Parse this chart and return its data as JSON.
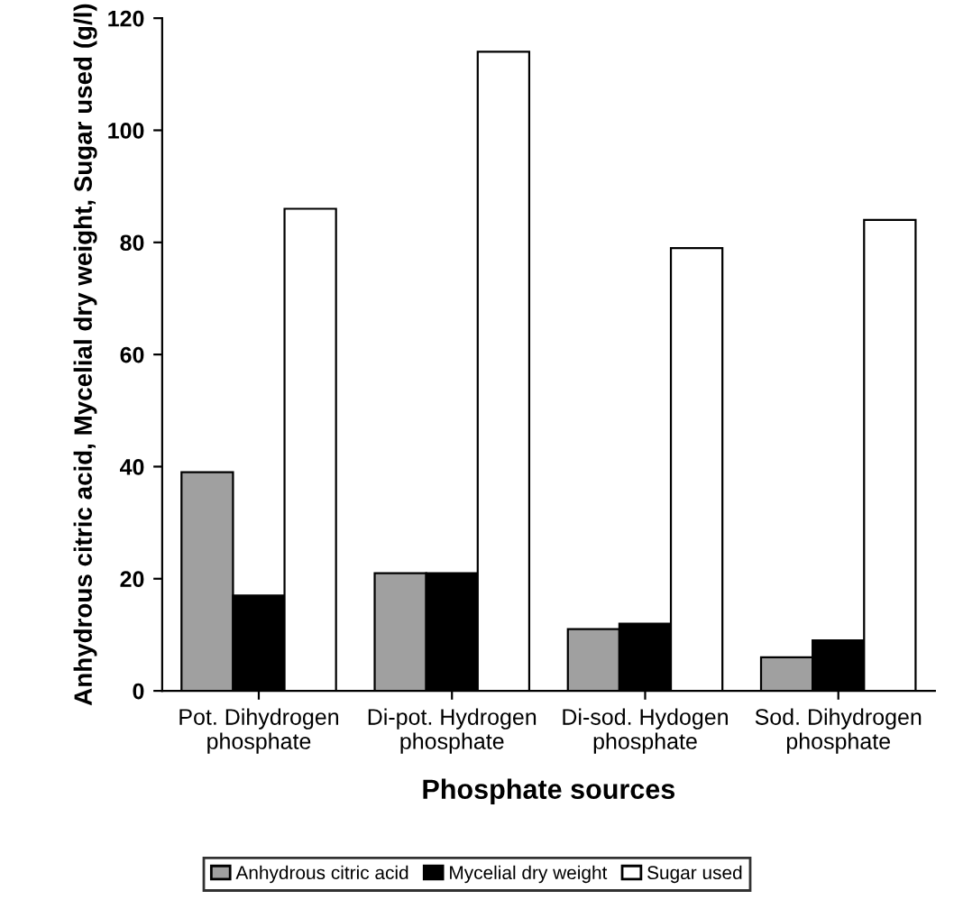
{
  "chart_data": {
    "type": "bar",
    "xlabel": "Phosphate sources",
    "ylabel": "Anhydrous citric acid, Mycelial dry weight, Sugar used (g/l)",
    "categories": [
      "Pot. Dihydrogen\nphosphate",
      "Di-pot. Hydrogen\nphosphate",
      "Di-sod. Hydogen\nphosphate",
      "Sod. Dihydrogen\nphosphate"
    ],
    "series": [
      {
        "name": "Anhydrous citric acid",
        "color": "#a0a0a0",
        "values": [
          39,
          21,
          11,
          6
        ]
      },
      {
        "name": "Mycelial dry weight",
        "color": "#000000",
        "values": [
          17,
          21,
          12,
          9
        ]
      },
      {
        "name": "Sugar used",
        "color": "#ffffff",
        "values": [
          86,
          114,
          79,
          84
        ]
      }
    ],
    "ylim": [
      0,
      120
    ],
    "yticks": [
      0,
      20,
      40,
      60,
      80,
      100,
      120
    ],
    "grid": false,
    "legend": "bottom"
  }
}
